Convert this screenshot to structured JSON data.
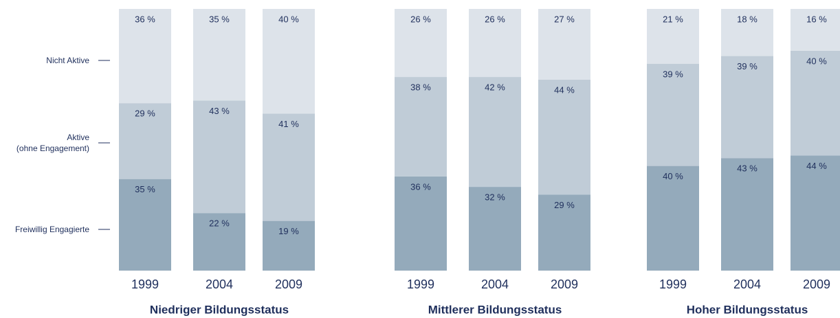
{
  "chart_data": {
    "type": "bar",
    "stacked": true,
    "categories": [
      "1999",
      "2004",
      "2009",
      "1999",
      "2004",
      "2009",
      "1999",
      "2004",
      "2009"
    ],
    "group_labels": [
      "Niedriger Bildungsstatus",
      "Mittlerer Bildungsstatus",
      "Hoher Bildungsstatus"
    ],
    "ylim": [
      0,
      100
    ],
    "series": [
      {
        "name": "Freiwillig Engagierte",
        "color": "#94aabb",
        "values": [
          35,
          22,
          19,
          36,
          32,
          29,
          40,
          43,
          44
        ],
        "value_labels": [
          "35 %",
          "22 %",
          "19 %",
          "36 %",
          "32 %",
          "29 %",
          "40 %",
          "43 %",
          "44 %"
        ]
      },
      {
        "name": "Aktive\n(ohne Engagement)",
        "color": "#c0ccd7",
        "values": [
          29,
          43,
          41,
          38,
          42,
          44,
          39,
          39,
          40
        ],
        "value_labels": [
          "29 %",
          "43 %",
          "41 %",
          "38 %",
          "42 %",
          "44 %",
          "39 %",
          "39 %",
          "40 %"
        ]
      },
      {
        "name": "Nicht Aktive",
        "color": "#dde3ea",
        "values": [
          36,
          35,
          40,
          26,
          26,
          27,
          21,
          18,
          16
        ],
        "value_labels": [
          "36 %",
          "35 %",
          "40 %",
          "26 %",
          "26 %",
          "27 %",
          "21 %",
          "18 %",
          "16 %"
        ]
      }
    ]
  }
}
